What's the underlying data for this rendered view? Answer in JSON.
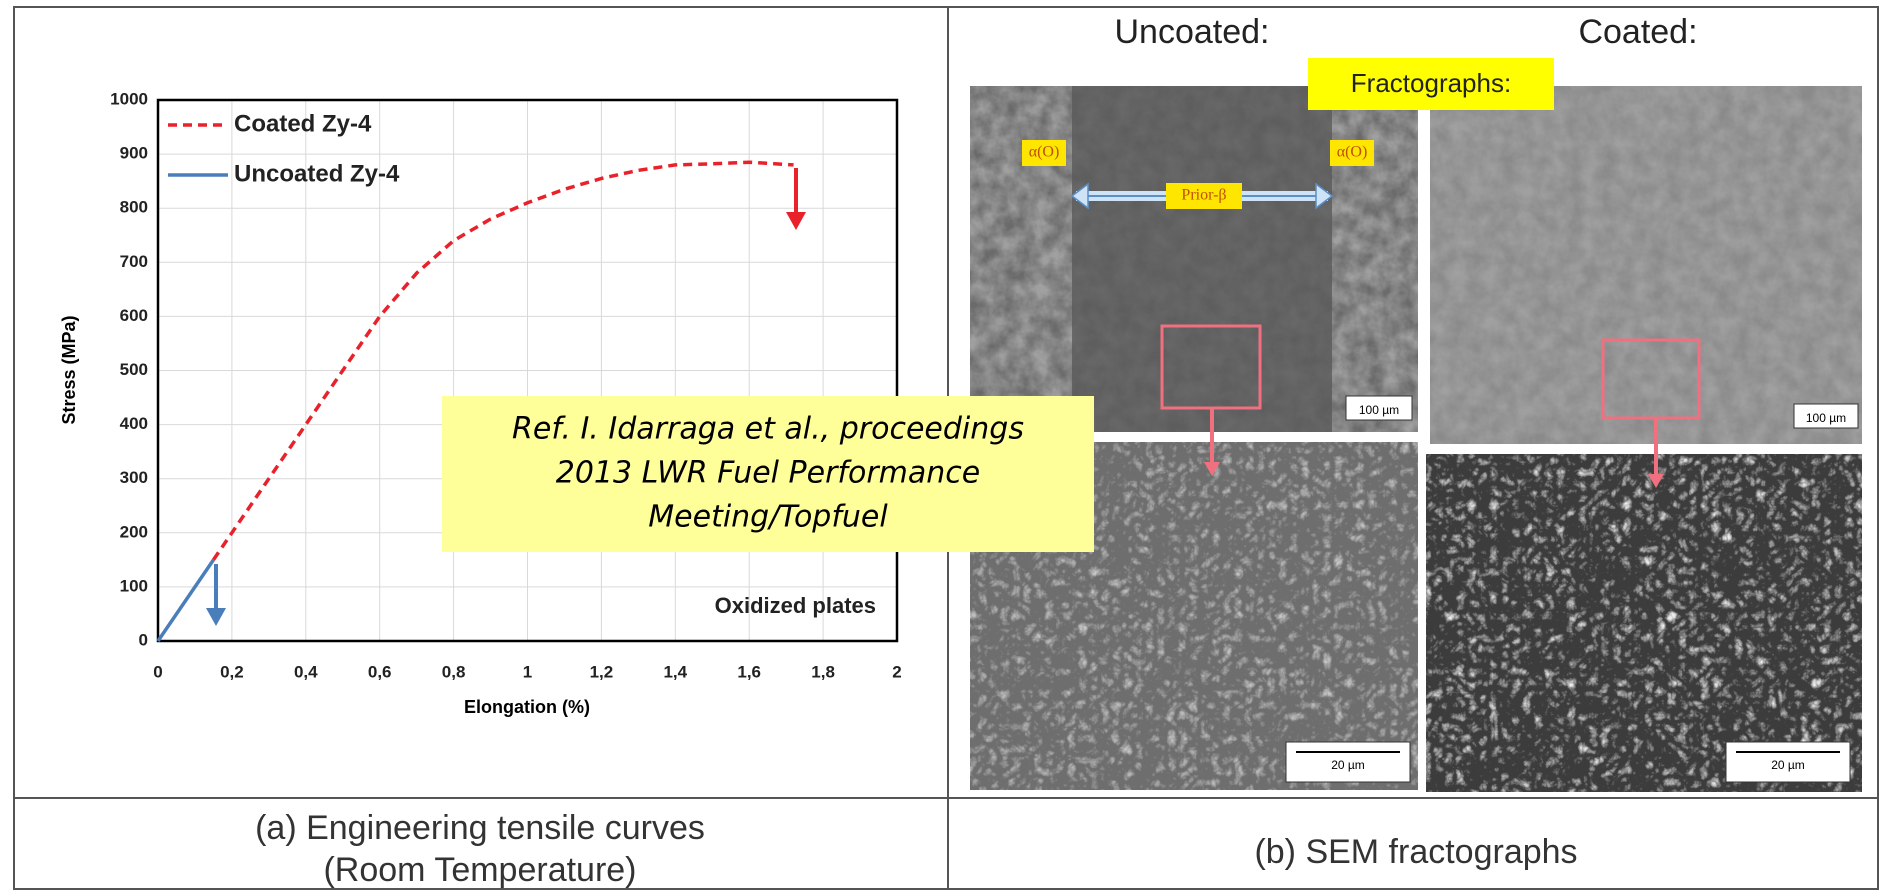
{
  "chart_data": {
    "type": "line",
    "x_label": "Elongation (%)",
    "y_label": "Stress (MPa)",
    "xlim": [
      0,
      2
    ],
    "ylim": [
      0,
      1000
    ],
    "xticks": [
      0,
      {
        "value": 0.2,
        "label": "0,2"
      },
      {
        "value": 0.4,
        "label": "0,4"
      },
      {
        "value": 0.6,
        "label": "0,6"
      },
      {
        "value": 0.8,
        "label": "0,8"
      },
      1,
      {
        "value": 1.2,
        "label": "1,2"
      },
      {
        "value": 1.4,
        "label": "1,4"
      },
      {
        "value": 1.6,
        "label": "1,6"
      },
      {
        "value": 1.8,
        "label": "1,8"
      },
      2
    ],
    "yticks": [
      0,
      100,
      200,
      300,
      400,
      500,
      600,
      700,
      800,
      900,
      1000
    ],
    "grid": true,
    "legend": "upper left",
    "annotation": "Oxidized plates",
    "series": [
      {
        "name": "Coated Zy-4",
        "color": "#e8212b",
        "style": "dashed",
        "x": [
          0.15,
          0.2,
          0.3,
          0.4,
          0.5,
          0.6,
          0.7,
          0.8,
          0.9,
          1.0,
          1.1,
          1.2,
          1.3,
          1.4,
          1.5,
          1.6,
          1.72
        ],
        "values": [
          150,
          200,
          300,
          400,
          500,
          600,
          680,
          740,
          780,
          810,
          835,
          855,
          870,
          880,
          882,
          885,
          880
        ]
      },
      {
        "name": "Uncoated Zy-4",
        "color": "#4a7ebb",
        "style": "solid",
        "x": [
          0,
          0.15
        ],
        "values": [
          0,
          150
        ]
      }
    ]
  },
  "panel_b": {
    "headers": [
      "Uncoated:",
      "Coated:"
    ],
    "badge": "Fractographs:",
    "region_labels": [
      "α(O)",
      "α(O)",
      "Prior-β"
    ],
    "scale_bars": [
      "100 µm",
      "100 µm",
      "20 µm",
      "20 µm"
    ]
  },
  "reference": [
    "Ref. I. Idarraga et al., proceedings",
    "2013 LWR Fuel Performance",
    "Meeting/Topfuel"
  ],
  "captions": {
    "a": [
      "(a) Engineering tensile curves",
      "(Room Temperature)"
    ],
    "b": "(b) SEM fractographs"
  }
}
